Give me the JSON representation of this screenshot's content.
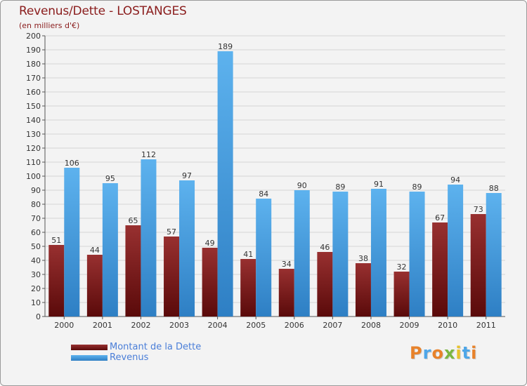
{
  "header": {
    "title": "Revenus/Dette - LOSTANGES",
    "subtitle": "(en milliers d'€)"
  },
  "logo": {
    "text": "Proxiti"
  },
  "colors": {
    "debt": "#7a1515",
    "revenue": "#4da6e8",
    "grid": "#d4d4d4",
    "axis": "#555555",
    "tick_text": "#333333",
    "label_text": "#333333"
  },
  "chart_data": {
    "type": "bar",
    "title": "Revenus/Dette - LOSTANGES",
    "subtitle": "(en milliers d'€)",
    "categories": [
      "2000",
      "2001",
      "2002",
      "2003",
      "2004",
      "2005",
      "2006",
      "2007",
      "2008",
      "2009",
      "2010",
      "2011"
    ],
    "series": [
      {
        "name": "Montant de la Dette",
        "values": [
          51,
          44,
          65,
          57,
          49,
          41,
          34,
          46,
          38,
          32,
          67,
          73
        ]
      },
      {
        "name": "Revenus",
        "values": [
          106,
          95,
          112,
          97,
          189,
          84,
          90,
          89,
          91,
          89,
          94,
          88
        ]
      }
    ],
    "ylim": [
      0,
      200
    ],
    "ytick_step": 10,
    "grid": true,
    "legend_position": "bottom-left"
  }
}
